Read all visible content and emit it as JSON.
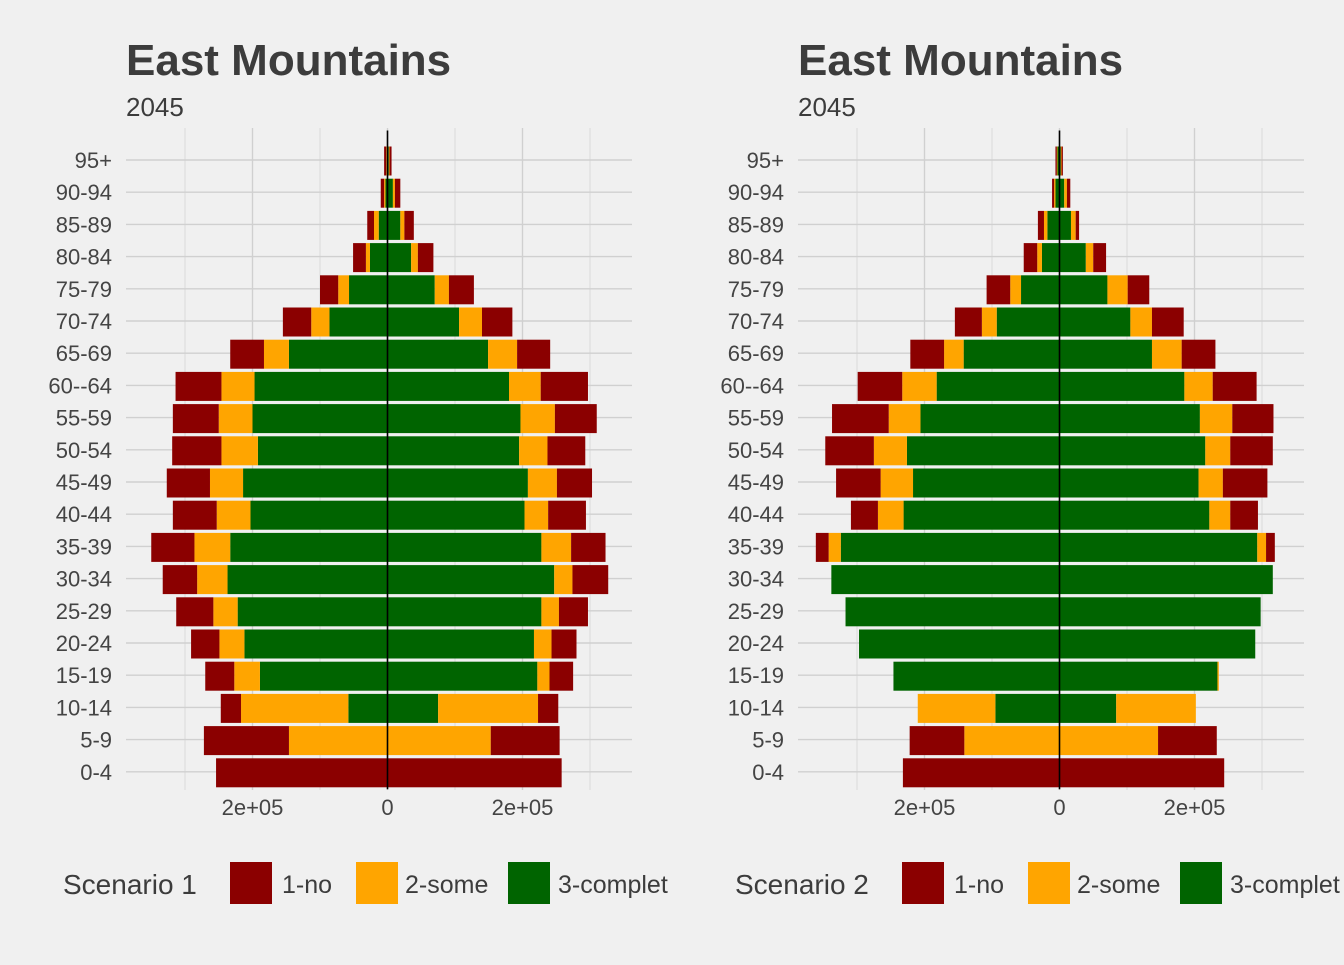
{
  "colors": {
    "no": "#8b0000",
    "some": "#ffa500",
    "complet": "#006400",
    "grid": "#d0d0d0",
    "background": "#f0f0f0"
  },
  "chart_data": [
    {
      "type": "bar",
      "orientation": "horizontal-stacked-pyramid",
      "title": "East Mountains",
      "subtitle": "2045",
      "xlim": [
        -380000,
        360000
      ],
      "x_ticks": [
        -200000,
        0,
        200000
      ],
      "x_tick_labels": [
        "2e+05",
        "0",
        "2e+05"
      ],
      "grid": true,
      "legend_position": "bottom",
      "legend_title": "Scenario 1",
      "legend_entries": [
        "1-no",
        "2-some",
        "3-complet"
      ],
      "categories": [
        "0-4",
        "5-9",
        "10-14",
        "15-19",
        "20-24",
        "25-29",
        "30-34",
        "35-39",
        "40-44",
        "45-49",
        "50-54",
        "55-59",
        "60--64",
        "65-69",
        "70-74",
        "75-79",
        "80-84",
        "85-89",
        "90-94",
        "95+"
      ],
      "series": [
        {
          "name": "3-complet",
          "left": [
            0,
            0,
            58000,
            189000,
            212000,
            222000,
            237000,
            233000,
            203000,
            214000,
            192000,
            200000,
            197000,
            146000,
            86000,
            57000,
            26000,
            13000,
            3000,
            1000
          ],
          "right": [
            0,
            0,
            75000,
            222000,
            217000,
            228000,
            247000,
            228000,
            203000,
            208000,
            195000,
            197000,
            180000,
            149000,
            106000,
            70000,
            35000,
            19000,
            8000,
            2000
          ]
        },
        {
          "name": "2-some",
          "left": [
            0,
            146000,
            159000,
            38000,
            37000,
            36000,
            45000,
            53000,
            50000,
            49000,
            54000,
            50000,
            49000,
            37000,
            27000,
            16000,
            6000,
            7000,
            2000,
            1000
          ],
          "right": [
            0,
            153000,
            148000,
            18000,
            26000,
            26000,
            27000,
            44000,
            35000,
            43000,
            42000,
            51000,
            47000,
            43000,
            34000,
            21000,
            10000,
            6000,
            3000,
            1000
          ]
        },
        {
          "name": "1-no",
          "left": [
            254000,
            126000,
            30000,
            43000,
            42000,
            55000,
            51000,
            64000,
            65000,
            64000,
            73000,
            68000,
            68000,
            50000,
            42000,
            27000,
            19000,
            10000,
            5000,
            3000
          ],
          "right": [
            258000,
            102000,
            30000,
            35000,
            37000,
            43000,
            53000,
            51000,
            56000,
            52000,
            56000,
            62000,
            70000,
            49000,
            45000,
            37000,
            23000,
            14000,
            8000,
            3000
          ]
        }
      ]
    },
    {
      "type": "bar",
      "orientation": "horizontal-stacked-pyramid",
      "title": "East Mountains",
      "subtitle": "2045",
      "xlim": [
        -380000,
        360000
      ],
      "x_ticks": [
        -200000,
        0,
        200000
      ],
      "x_tick_labels": [
        "2e+05",
        "0",
        "2e+05"
      ],
      "grid": true,
      "legend_position": "bottom",
      "legend_title": "Scenario 2",
      "legend_entries": [
        "1-no",
        "2-some",
        "3-complet"
      ],
      "categories": [
        "0-4",
        "5-9",
        "10-14",
        "15-19",
        "20-24",
        "25-29",
        "30-34",
        "35-39",
        "40-44",
        "45-49",
        "50-54",
        "55-59",
        "60--64",
        "65-69",
        "70-74",
        "75-79",
        "80-84",
        "85-89",
        "90-94",
        "95+"
      ],
      "series": [
        {
          "name": "3-complet",
          "left": [
            0,
            0,
            95000,
            246000,
            297000,
            317000,
            338000,
            324000,
            231000,
            217000,
            226000,
            206000,
            182000,
            142000,
            93000,
            57000,
            26000,
            18000,
            6000,
            3000
          ],
          "right": [
            0,
            0,
            84000,
            234000,
            290000,
            298000,
            316000,
            293000,
            222000,
            206000,
            216000,
            208000,
            185000,
            137000,
            105000,
            71000,
            39000,
            17000,
            7000,
            2000
          ],
          "right_extra_note": ""
        },
        {
          "name": "2-some",
          "left": [
            0,
            141000,
            115000,
            0,
            0,
            0,
            0,
            18000,
            38000,
            48000,
            49000,
            47000,
            51000,
            29000,
            22000,
            16000,
            7000,
            5000,
            2000,
            1000
          ],
          "right": [
            0,
            146000,
            118000,
            2000,
            0,
            0,
            0,
            13000,
            31000,
            36000,
            37000,
            48000,
            42000,
            44000,
            32000,
            30000,
            11000,
            7000,
            4000,
            1000
          ]
        },
        {
          "name": "1-no",
          "left": [
            232000,
            81000,
            0,
            0,
            0,
            0,
            0,
            19000,
            40000,
            66000,
            72000,
            84000,
            66000,
            50000,
            40000,
            35000,
            20000,
            9000,
            3000,
            2000
          ],
          "right": [
            244000,
            87000,
            0,
            0,
            0,
            0,
            0,
            13000,
            41000,
            66000,
            63000,
            61000,
            65000,
            50000,
            47000,
            32000,
            19000,
            5000,
            5000,
            2000
          ]
        }
      ]
    }
  ]
}
